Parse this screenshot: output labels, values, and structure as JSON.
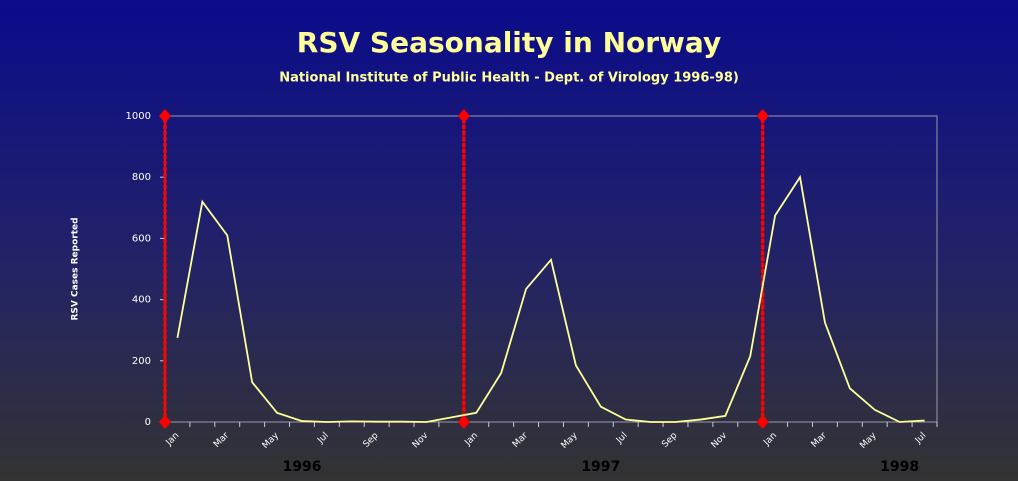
{
  "chart_data": {
    "type": "line",
    "title": "RSV Seasonality in Norway",
    "subtitle": "National Institute of Public Health - Dept. of Virology 1996-98)",
    "y_label": "RSV Cases Reported",
    "categories": [
      "Jan",
      null,
      "Mar",
      null,
      "May",
      null,
      "Jul",
      null,
      "Sep",
      null,
      "Nov",
      null,
      "Jan",
      null,
      "Mar",
      null,
      "May",
      null,
      "Jul",
      null,
      "Sep",
      null,
      "Nov",
      null,
      "Jan",
      null,
      "Mar",
      null,
      "May",
      null,
      "Jul"
    ],
    "values": [
      275,
      720,
      610,
      130,
      30,
      3,
      0,
      2,
      1,
      1,
      0,
      15,
      30,
      160,
      435,
      530,
      185,
      50,
      8,
      0,
      0,
      8,
      20,
      215,
      675,
      800,
      325,
      110,
      40,
      0,
      5
    ],
    "color": "#ffff99",
    "year_labels": [
      "1996",
      "1997",
      "1998"
    ],
    "marker_color": "#ff0000",
    "ylim": [
      0,
      1000
    ],
    "yticks": [
      0,
      200,
      400,
      600,
      800,
      1000
    ]
  }
}
